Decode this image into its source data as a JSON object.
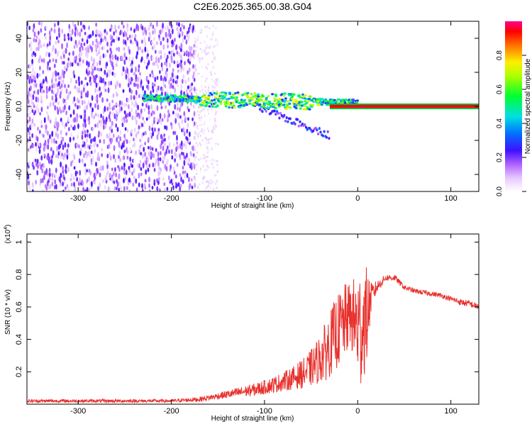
{
  "title": "C2E6.2025.365.00.38.G04",
  "chart_data": [
    {
      "type": "heatmap",
      "xlabel": "Height of straight line (km)",
      "ylabel": "Frequency (Hz)",
      "xlim": [
        -355,
        130
      ],
      "ylim": [
        -50,
        50
      ],
      "xticks": [
        -300,
        -200,
        -100,
        0,
        100
      ],
      "yticks": [
        -40,
        -20,
        0,
        20,
        40
      ],
      "colorbar": {
        "label": "Normalized spectral amplitude",
        "range": [
          0,
          1
        ],
        "ticks": [
          0.0,
          0.2,
          0.4,
          0.6,
          0.8
        ],
        "colormap": [
          "#ffffff",
          "#d6b6ff",
          "#8a2be2",
          "#1010ff",
          "#00d8ff",
          "#00ff40",
          "#ffff00",
          "#ff8000",
          "#ff0000",
          "#ff00a0"
        ]
      },
      "regions": [
        {
          "name": "noise",
          "x_range": [
            -355,
            -175
          ],
          "freq_range": [
            -50,
            48
          ],
          "amplitude": 0.15
        },
        {
          "name": "scatter",
          "x_range": [
            -175,
            -150
          ],
          "freq_range": [
            -50,
            48
          ],
          "amplitude": 0.05
        },
        {
          "name": "signal",
          "x_range": [
            -230,
            0
          ],
          "freq_center_start": 5,
          "freq_center_end": 2,
          "amplitude": 0.45
        },
        {
          "name": "tail",
          "x_range": [
            -110,
            -30
          ],
          "freq_start": 0,
          "freq_end": -17,
          "amplitude": 0.25
        },
        {
          "name": "tone",
          "x_range": [
            -30,
            130
          ],
          "freq": 0,
          "amplitude": 1.0
        }
      ]
    },
    {
      "type": "line",
      "xlabel": "Height of straight line (km)",
      "ylabel": "SNR (10 * v/v)",
      "yscale_label": "(x10",
      "yscale_exp": "4",
      "ylabel_unit": ")",
      "xlim": [
        -355,
        130
      ],
      "ylim": [
        0,
        1.05
      ],
      "xticks": [
        -300,
        -200,
        -100,
        0,
        100
      ],
      "yticks": [
        0.2,
        0.4,
        0.6,
        0.8,
        1.0
      ],
      "color": "#e8302c",
      "series": [
        {
          "x": [
            -355,
            -300,
            -250,
            -200,
            -170,
            -150,
            -130,
            -110,
            -90,
            -70,
            -55,
            -45,
            -35,
            -25,
            -15,
            -8,
            -2,
            2,
            6,
            10,
            14,
            20,
            30,
            40,
            50,
            60,
            70,
            80,
            90,
            100,
            110,
            120,
            130
          ],
          "values": [
            0.02,
            0.02,
            0.02,
            0.02,
            0.03,
            0.05,
            0.07,
            0.09,
            0.12,
            0.16,
            0.2,
            0.25,
            0.32,
            0.42,
            0.5,
            0.55,
            0.5,
            0.45,
            0.5,
            0.55,
            0.65,
            0.72,
            0.78,
            0.78,
            0.72,
            0.7,
            0.69,
            0.68,
            0.67,
            0.65,
            0.63,
            0.62,
            0.6
          ],
          "noise_amp": [
            0.01,
            0.01,
            0.01,
            0.01,
            0.015,
            0.02,
            0.03,
            0.04,
            0.05,
            0.07,
            0.1,
            0.13,
            0.18,
            0.22,
            0.24,
            0.2,
            0.3,
            0.4,
            0.35,
            0.3,
            0.1,
            0.04,
            0.02,
            0.02,
            0.015,
            0.015,
            0.015,
            0.015,
            0.015,
            0.015,
            0.02,
            0.02,
            0.02
          ]
        }
      ]
    }
  ]
}
